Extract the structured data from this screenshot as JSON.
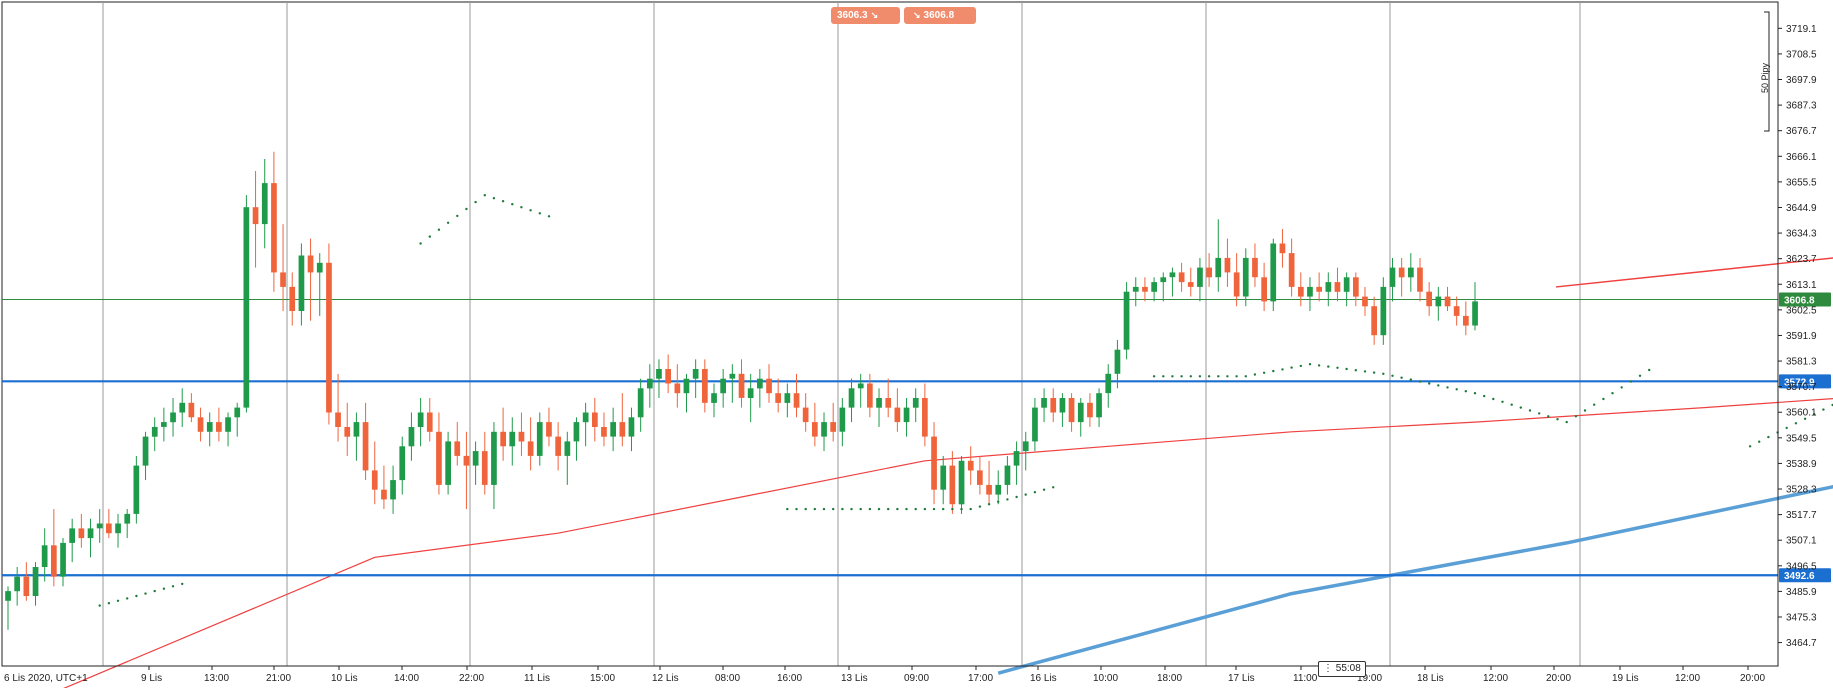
{
  "toolbar": {
    "sell_price": "3606.3",
    "buy_price": "3606.8",
    "sell_icon": "arrow-down-right-icon",
    "buy_icon": "arrow-down-right-icon",
    "pips_label": "50 Pipy"
  },
  "timer": "55:08",
  "colors": {
    "up": "#1e9a4a",
    "down": "#f0643c",
    "ma_fast": "#f04040",
    "ma_slow": "#5a9fd6",
    "level": "#1a6fd0",
    "bid": "#2e8b3e",
    "sar": "#1e7a3a",
    "grid": "#9a9a9a"
  },
  "chart_data": {
    "type": "candlestick",
    "symbol_time": "6 Lis 2020, UTC+1",
    "ylim": [
      3455,
      3730
    ],
    "y_ticks": [
      "3719.1",
      "3708.5",
      "3697.9",
      "3687.3",
      "3676.7",
      "3666.1",
      "3655.5",
      "3644.9",
      "3634.3",
      "3623.7",
      "3613.1",
      "3602.5",
      "3591.9",
      "3581.3",
      "3570.7",
      "3560.1",
      "3549.5",
      "3538.9",
      "3528.3",
      "3517.7",
      "3507.1",
      "3496.5",
      "3485.9",
      "3475.3",
      "3464.7"
    ],
    "x_ticks": [
      "6 Lis 2020, UTC+1",
      "9 Lis",
      "13:00",
      "21:00",
      "10 Lis",
      "14:00",
      "22:00",
      "11 Lis",
      "15:00",
      "12 Lis",
      "08:00",
      "16:00",
      "13 Lis",
      "09:00",
      "17:00",
      "16 Lis",
      "10:00",
      "18:00",
      "17 Lis",
      "11:00",
      "19:00",
      "18 Lis",
      "12:00",
      "20:00",
      "19 Lis",
      "12:00",
      "20:00"
    ],
    "price_labels": [
      {
        "value": 3606.8,
        "label": "3606.8",
        "kind": "bid"
      },
      {
        "value": 3572.9,
        "label": "3572.9",
        "kind": "level"
      },
      {
        "value": 3492.6,
        "label": "3492.6",
        "kind": "level"
      }
    ],
    "horizontal_levels": [
      3572.9,
      3492.6
    ],
    "bid": 3606.8,
    "trendline": [
      [
        247,
        3643
      ],
      [
        312,
        3612
      ]
    ],
    "candles": [
      [
        3482,
        3488,
        3470,
        3486
      ],
      [
        3486,
        3496,
        3480,
        3492
      ],
      [
        3492,
        3498,
        3482,
        3484
      ],
      [
        3484,
        3498,
        3480,
        3496
      ],
      [
        3496,
        3512,
        3490,
        3505
      ],
      [
        3505,
        3520,
        3488,
        3492
      ],
      [
        3492,
        3508,
        3488,
        3506
      ],
      [
        3506,
        3516,
        3498,
        3512
      ],
      [
        3512,
        3518,
        3504,
        3508
      ],
      [
        3508,
        3516,
        3500,
        3512
      ],
      [
        3512,
        3520,
        3506,
        3514
      ],
      [
        3514,
        3520,
        3508,
        3510
      ],
      [
        3510,
        3518,
        3504,
        3514
      ],
      [
        3514,
        3520,
        3508,
        3518
      ],
      [
        3518,
        3542,
        3514,
        3538
      ],
      [
        3538,
        3552,
        3532,
        3550
      ],
      [
        3550,
        3558,
        3544,
        3554
      ],
      [
        3554,
        3562,
        3548,
        3556
      ],
      [
        3556,
        3566,
        3550,
        3560
      ],
      [
        3560,
        3570,
        3554,
        3564
      ],
      [
        3564,
        3568,
        3556,
        3558
      ],
      [
        3558,
        3562,
        3548,
        3552
      ],
      [
        3552,
        3560,
        3546,
        3556
      ],
      [
        3556,
        3562,
        3548,
        3552
      ],
      [
        3552,
        3560,
        3546,
        3558
      ],
      [
        3558,
        3564,
        3550,
        3562
      ],
      [
        3562,
        3650,
        3560,
        3645
      ],
      [
        3645,
        3660,
        3620,
        3638
      ],
      [
        3638,
        3665,
        3628,
        3655
      ],
      [
        3655,
        3668,
        3610,
        3618
      ],
      [
        3618,
        3638,
        3602,
        3612
      ],
      [
        3612,
        3618,
        3596,
        3602
      ],
      [
        3602,
        3630,
        3596,
        3625
      ],
      [
        3625,
        3632,
        3598,
        3618
      ],
      [
        3618,
        3626,
        3600,
        3622
      ],
      [
        3622,
        3630,
        3555,
        3560
      ],
      [
        3560,
        3576,
        3548,
        3554
      ],
      [
        3554,
        3564,
        3542,
        3550
      ],
      [
        3550,
        3560,
        3540,
        3556
      ],
      [
        3556,
        3564,
        3532,
        3536
      ],
      [
        3536,
        3548,
        3522,
        3528
      ],
      [
        3528,
        3538,
        3520,
        3524
      ],
      [
        3524,
        3538,
        3518,
        3532
      ],
      [
        3532,
        3550,
        3526,
        3546
      ],
      [
        3546,
        3560,
        3540,
        3554
      ],
      [
        3554,
        3566,
        3546,
        3560
      ],
      [
        3560,
        3566,
        3548,
        3552
      ],
      [
        3552,
        3560,
        3526,
        3530
      ],
      [
        3530,
        3552,
        3526,
        3548
      ],
      [
        3548,
        3556,
        3538,
        3542
      ],
      [
        3542,
        3552,
        3520,
        3538
      ],
      [
        3538,
        3548,
        3530,
        3544
      ],
      [
        3544,
        3552,
        3526,
        3530
      ],
      [
        3530,
        3556,
        3520,
        3552
      ],
      [
        3552,
        3562,
        3540,
        3546
      ],
      [
        3546,
        3558,
        3538,
        3552
      ],
      [
        3552,
        3560,
        3542,
        3548
      ],
      [
        3548,
        3558,
        3536,
        3542
      ],
      [
        3542,
        3560,
        3538,
        3556
      ],
      [
        3556,
        3562,
        3546,
        3550
      ],
      [
        3550,
        3556,
        3536,
        3542
      ],
      [
        3542,
        3552,
        3530,
        3548
      ],
      [
        3548,
        3558,
        3540,
        3556
      ],
      [
        3556,
        3564,
        3546,
        3560
      ],
      [
        3560,
        3566,
        3548,
        3554
      ],
      [
        3554,
        3560,
        3546,
        3550
      ],
      [
        3550,
        3562,
        3544,
        3556
      ],
      [
        3556,
        3568,
        3546,
        3550
      ],
      [
        3550,
        3562,
        3544,
        3558
      ],
      [
        3558,
        3574,
        3552,
        3570
      ],
      [
        3570,
        3580,
        3562,
        3574
      ],
      [
        3574,
        3582,
        3566,
        3578
      ],
      [
        3578,
        3584,
        3568,
        3572
      ],
      [
        3572,
        3580,
        3562,
        3568
      ],
      [
        3568,
        3576,
        3560,
        3574
      ],
      [
        3574,
        3582,
        3566,
        3578
      ],
      [
        3578,
        3582,
        3560,
        3564
      ],
      [
        3564,
        3572,
        3558,
        3568
      ],
      [
        3568,
        3578,
        3562,
        3574
      ],
      [
        3574,
        3580,
        3564,
        3576
      ],
      [
        3576,
        3582,
        3562,
        3566
      ],
      [
        3566,
        3576,
        3556,
        3570
      ],
      [
        3570,
        3578,
        3562,
        3574
      ],
      [
        3574,
        3580,
        3564,
        3568
      ],
      [
        3568,
        3574,
        3560,
        3564
      ],
      [
        3564,
        3572,
        3558,
        3568
      ],
      [
        3568,
        3576,
        3558,
        3562
      ],
      [
        3562,
        3568,
        3552,
        3556
      ],
      [
        3556,
        3564,
        3546,
        3550
      ],
      [
        3550,
        3560,
        3544,
        3556
      ],
      [
        3556,
        3564,
        3548,
        3552
      ],
      [
        3552,
        3566,
        3546,
        3562
      ],
      [
        3562,
        3574,
        3556,
        3570
      ],
      [
        3570,
        3576,
        3562,
        3572
      ],
      [
        3572,
        3576,
        3558,
        3562
      ],
      [
        3562,
        3570,
        3554,
        3566
      ],
      [
        3566,
        3574,
        3558,
        3562
      ],
      [
        3562,
        3570,
        3552,
        3556
      ],
      [
        3556,
        3566,
        3550,
        3562
      ],
      [
        3562,
        3570,
        3556,
        3566
      ],
      [
        3566,
        3572,
        3546,
        3550
      ],
      [
        3550,
        3556,
        3522,
        3528
      ],
      [
        3528,
        3542,
        3522,
        3538
      ],
      [
        3538,
        3544,
        3518,
        3522
      ],
      [
        3522,
        3542,
        3518,
        3540
      ],
      [
        3540,
        3546,
        3530,
        3536
      ],
      [
        3536,
        3542,
        3526,
        3530
      ],
      [
        3530,
        3540,
        3522,
        3526
      ],
      [
        3526,
        3536,
        3522,
        3530
      ],
      [
        3530,
        3542,
        3526,
        3538
      ],
      [
        3538,
        3548,
        3530,
        3544
      ],
      [
        3544,
        3552,
        3536,
        3548
      ],
      [
        3548,
        3566,
        3544,
        3562
      ],
      [
        3562,
        3570,
        3556,
        3566
      ],
      [
        3566,
        3570,
        3556,
        3560
      ],
      [
        3560,
        3568,
        3554,
        3566
      ],
      [
        3566,
        3568,
        3552,
        3556
      ],
      [
        3556,
        3566,
        3550,
        3564
      ],
      [
        3564,
        3568,
        3554,
        3558
      ],
      [
        3558,
        3570,
        3554,
        3568
      ],
      [
        3568,
        3580,
        3562,
        3576
      ],
      [
        3576,
        3590,
        3570,
        3586
      ],
      [
        3586,
        3614,
        3582,
        3610
      ],
      [
        3610,
        3616,
        3604,
        3612
      ],
      [
        3612,
        3616,
        3606,
        3610
      ],
      [
        3610,
        3616,
        3606,
        3614
      ],
      [
        3614,
        3618,
        3606,
        3616
      ],
      [
        3616,
        3620,
        3608,
        3618
      ],
      [
        3618,
        3622,
        3610,
        3614
      ],
      [
        3614,
        3620,
        3608,
        3612
      ],
      [
        3612,
        3624,
        3606,
        3620
      ],
      [
        3620,
        3626,
        3612,
        3616
      ],
      [
        3616,
        3640,
        3610,
        3624
      ],
      [
        3624,
        3632,
        3612,
        3618
      ],
      [
        3618,
        3626,
        3604,
        3608
      ],
      [
        3608,
        3628,
        3604,
        3624
      ],
      [
        3624,
        3630,
        3612,
        3616
      ],
      [
        3616,
        3622,
        3602,
        3606
      ],
      [
        3606,
        3632,
        3602,
        3630
      ],
      [
        3630,
        3636,
        3620,
        3626
      ],
      [
        3626,
        3632,
        3608,
        3612
      ],
      [
        3612,
        3618,
        3604,
        3608
      ],
      [
        3608,
        3616,
        3602,
        3612
      ],
      [
        3612,
        3618,
        3606,
        3610
      ],
      [
        3610,
        3618,
        3604,
        3614
      ],
      [
        3614,
        3620,
        3606,
        3610
      ],
      [
        3610,
        3618,
        3604,
        3616
      ],
      [
        3616,
        3618,
        3604,
        3608
      ],
      [
        3608,
        3612,
        3600,
        3604
      ],
      [
        3604,
        3608,
        3588,
        3592
      ],
      [
        3592,
        3616,
        3588,
        3612
      ],
      [
        3612,
        3624,
        3606,
        3620
      ],
      [
        3620,
        3624,
        3608,
        3616
      ],
      [
        3616,
        3626,
        3610,
        3620
      ],
      [
        3620,
        3624,
        3606,
        3610
      ],
      [
        3610,
        3614,
        3600,
        3604
      ],
      [
        3604,
        3612,
        3598,
        3608
      ],
      [
        3608,
        3612,
        3602,
        3604
      ],
      [
        3604,
        3608,
        3596,
        3600
      ],
      [
        3600,
        3606,
        3592,
        3596
      ],
      [
        3596,
        3614,
        3594,
        3606
      ]
    ],
    "ma_fast": [
      [
        0,
        3436
      ],
      [
        40,
        3500
      ],
      [
        60,
        3510
      ],
      [
        80,
        3525
      ],
      [
        100,
        3540
      ],
      [
        120,
        3546
      ],
      [
        140,
        3552
      ],
      [
        160,
        3556
      ],
      [
        185,
        3562
      ],
      [
        200,
        3566
      ],
      [
        208,
        3566
      ],
      [
        230,
        3570
      ],
      [
        248,
        3576
      ],
      [
        268,
        3580
      ],
      [
        290,
        3586
      ],
      [
        302,
        3587
      ],
      [
        315,
        3590
      ]
    ],
    "ma_slow": [
      [
        108,
        3452
      ],
      [
        140,
        3485
      ],
      [
        170,
        3506
      ],
      [
        200,
        3530
      ],
      [
        230,
        3554
      ],
      [
        260,
        3572
      ],
      [
        290,
        3583
      ],
      [
        302,
        3586
      ],
      [
        315,
        3589
      ]
    ],
    "sar": [
      [
        0,
        3508
      ],
      [
        10,
        3480
      ],
      [
        20,
        3490
      ],
      [
        30,
        3530
      ],
      [
        38,
        3575
      ],
      [
        45,
        3630
      ],
      [
        52,
        3650
      ],
      [
        60,
        3640
      ],
      [
        68,
        3610
      ],
      [
        75,
        3575
      ],
      [
        85,
        3520
      ],
      [
        95,
        3520
      ],
      [
        105,
        3520
      ],
      [
        115,
        3530
      ],
      [
        125,
        3575
      ],
      [
        135,
        3575
      ],
      [
        142,
        3580
      ],
      [
        150,
        3576
      ],
      [
        160,
        3568
      ],
      [
        170,
        3556
      ],
      [
        180,
        3580
      ],
      [
        190,
        3546
      ],
      [
        200,
        3565
      ],
      [
        210,
        3578
      ],
      [
        225,
        3600
      ],
      [
        240,
        3638
      ],
      [
        250,
        3640
      ],
      [
        262,
        3608
      ],
      [
        275,
        3612
      ],
      [
        282,
        3598
      ],
      [
        292,
        3624
      ],
      [
        300,
        3626
      ]
    ]
  }
}
